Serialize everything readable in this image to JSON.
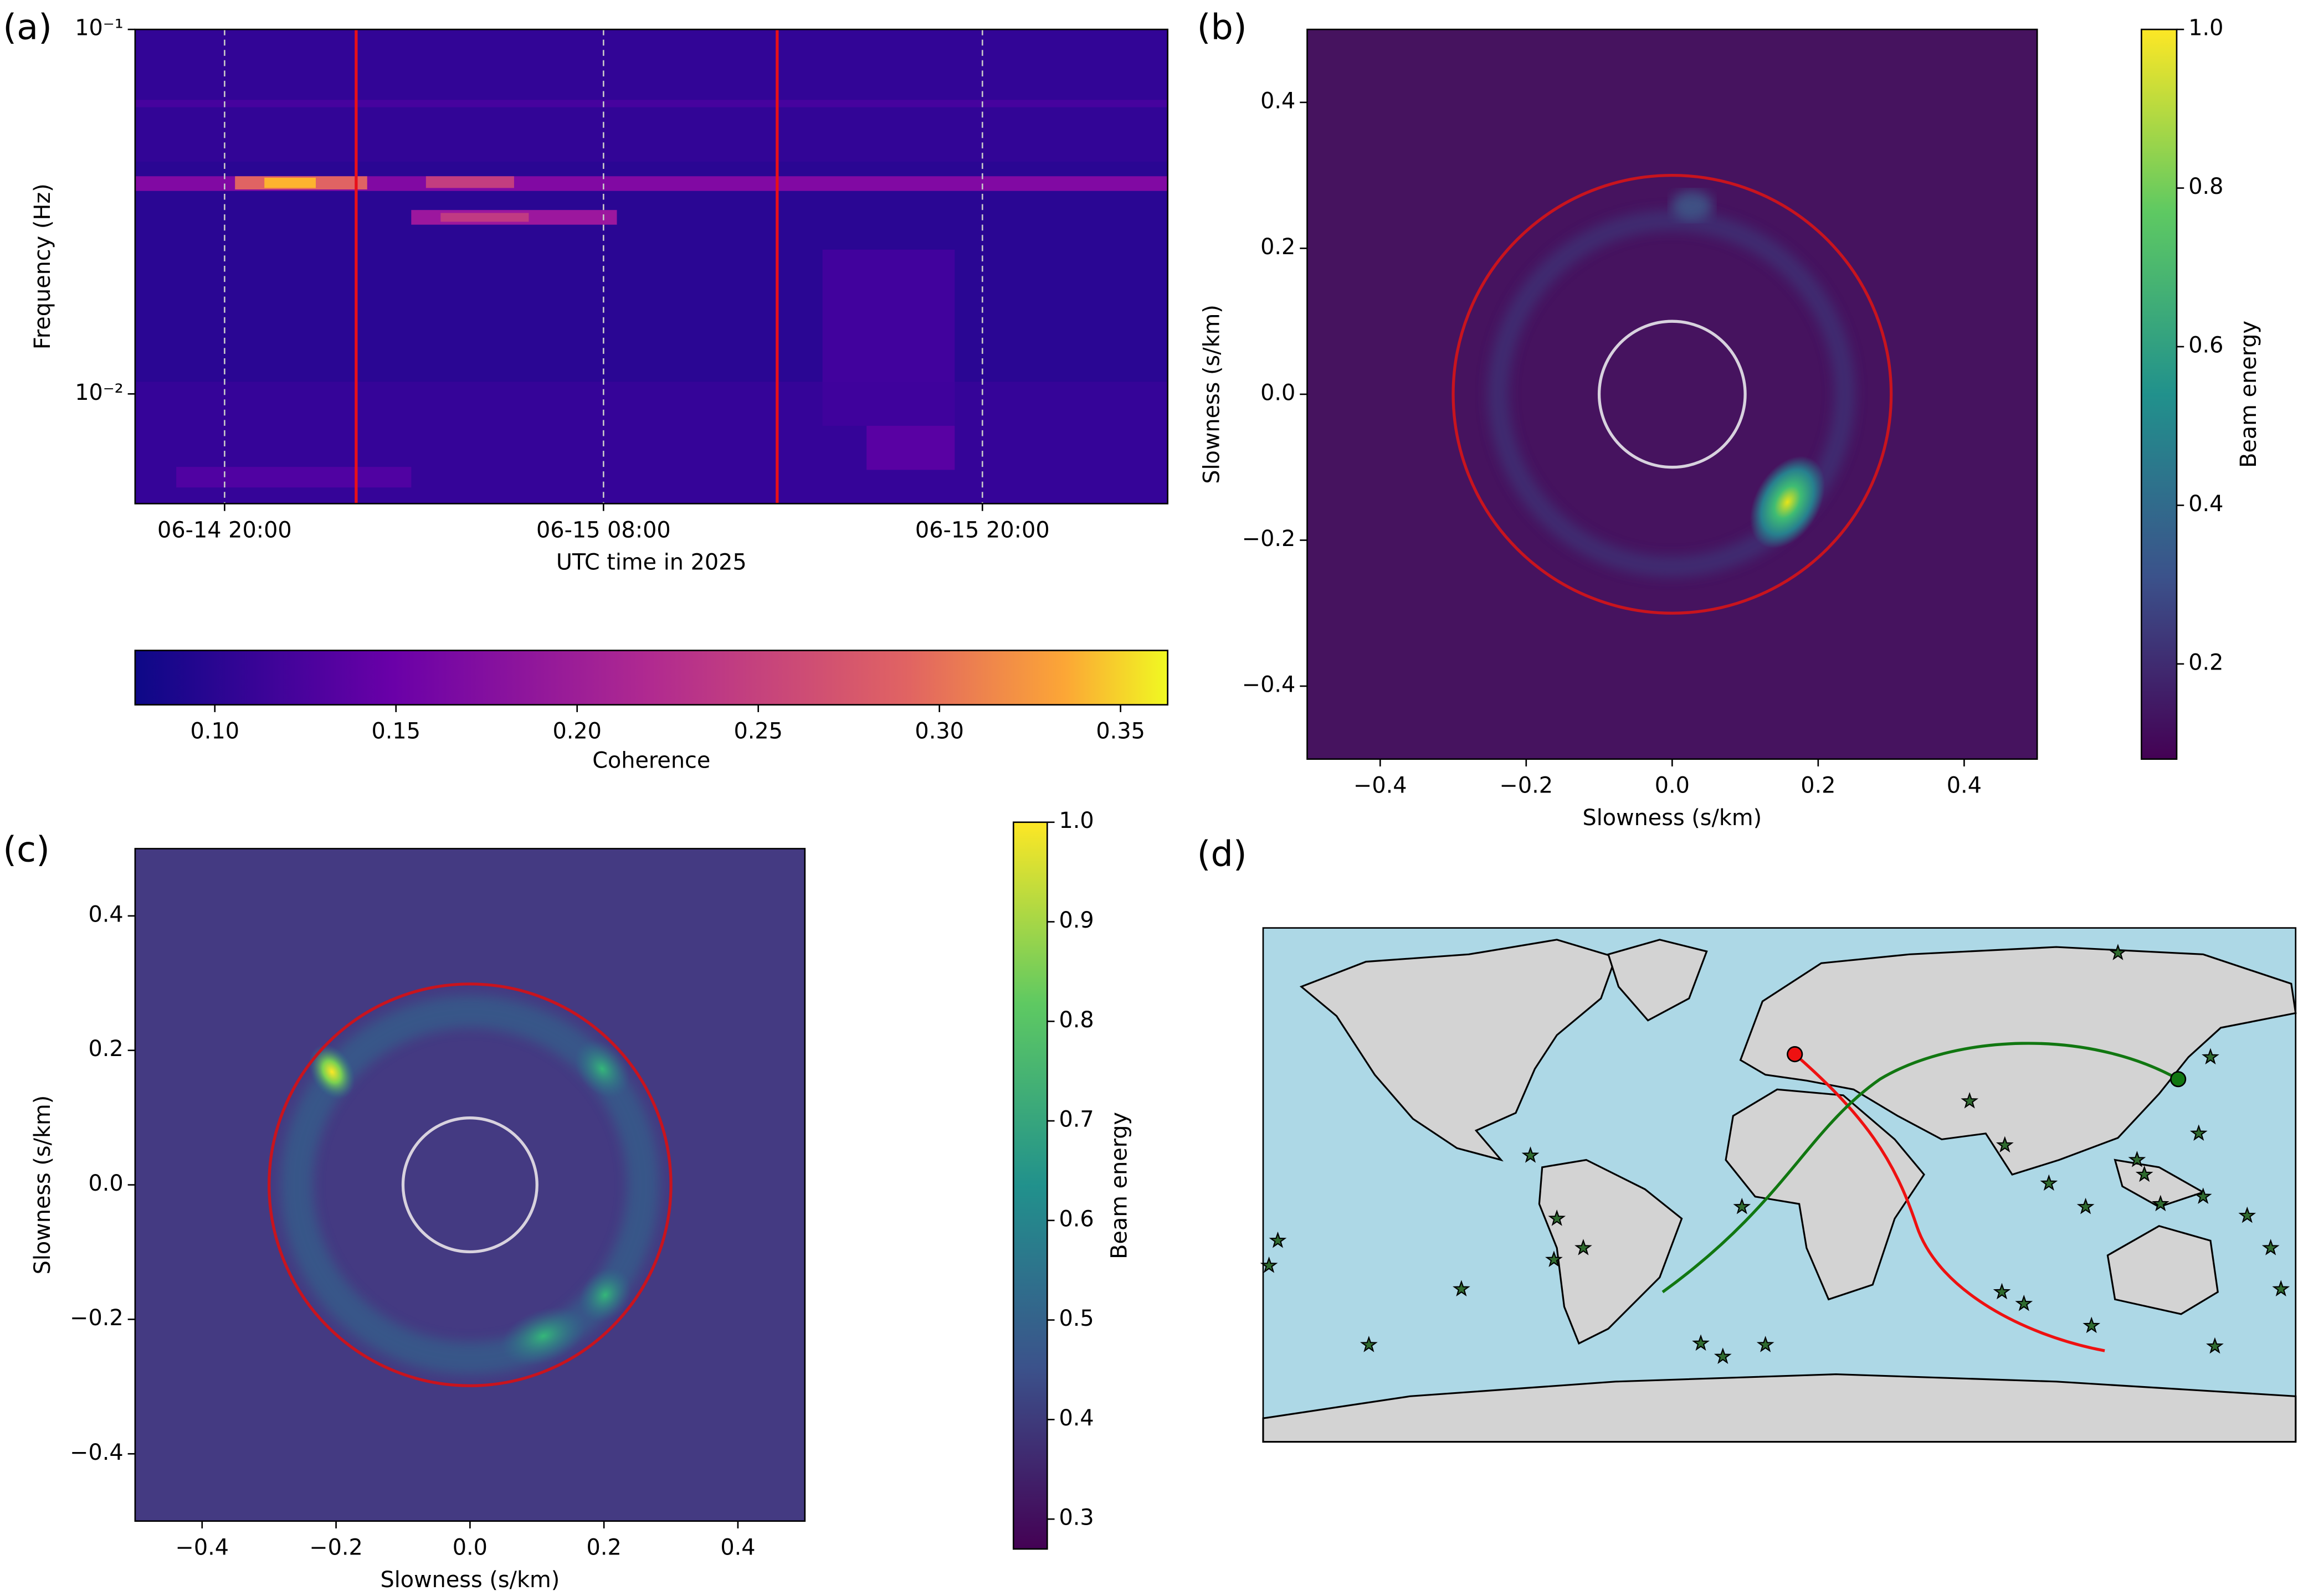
{
  "chart_data": [
    {
      "type": "heatmap",
      "label": "(a)",
      "xlabel": "UTC time in 2025",
      "ylabel": "Frequency (Hz)",
      "xlim": [
        "2025-06-14T17:10",
        "2025-06-16T01:52"
      ],
      "xticks": [
        {
          "value": "2025-06-14T20:00",
          "label": "06-14 20:00"
        },
        {
          "value": "2025-06-15T08:00",
          "label": "06-15 08:00"
        },
        {
          "value": "2025-06-15T20:00",
          "label": "06-15 20:00"
        }
      ],
      "xgrid": true,
      "yscale": "log",
      "ylim": [
        0.005,
        0.1
      ],
      "yticks": [
        {
          "value": 0.01,
          "label": "10⁻²"
        },
        {
          "value": 0.1,
          "label": "10⁻¹"
        }
      ],
      "vlines": [
        {
          "x": "2025-06-15T00:10",
          "color": "#e8101a"
        },
        {
          "x": "2025-06-15T13:30",
          "color": "#e8101a"
        }
      ],
      "colorbar": {
        "label": "Coherence",
        "colormap": "plasma",
        "orientation": "horizontal",
        "lim": [
          0.078,
          0.363
        ],
        "ticks": [
          {
            "value": 0.1,
            "label": "0.10"
          },
          0.15,
          {
            "value": 0.2,
            "label": "0.20"
          },
          0.25,
          {
            "value": 0.3,
            "label": "0.30"
          },
          0.35
        ]
      }
    },
    {
      "type": "heatmap",
      "label": "(b)",
      "xlabel": "Slowness (s/km)",
      "ylabel": "Slowness (s/km)",
      "xlim": [
        -0.5,
        0.5
      ],
      "ylim": [
        -0.5,
        0.5
      ],
      "xticks": [
        {
          "value": -0.4,
          "label": "−0.4"
        },
        {
          "value": -0.2,
          "label": "−0.2"
        },
        {
          "value": 0,
          "label": "0.0"
        },
        0.2,
        0.4
      ],
      "yticks": [
        {
          "value": -0.4,
          "label": "−0.4"
        },
        {
          "value": -0.2,
          "label": "−0.2"
        },
        {
          "value": 0,
          "label": "0.0"
        },
        0.2,
        0.4
      ],
      "circles": [
        {
          "r": 0.3,
          "color": "#c8141e"
        },
        {
          "r": 0.1,
          "color": "#d8d2de"
        }
      ],
      "colorbar": {
        "label": "Beam energy",
        "colormap": "viridis",
        "orientation": "vertical",
        "lim": [
          0.08,
          1.0
        ],
        "ticks": [
          0.2,
          0.4,
          0.6,
          0.8,
          {
            "value": 1,
            "label": "1.0"
          }
        ]
      }
    },
    {
      "type": "heatmap",
      "label": "(c)",
      "xlabel": "Slowness (s/km)",
      "ylabel": "Slowness (s/km)",
      "xlim": [
        -0.5,
        0.5
      ],
      "ylim": [
        -0.5,
        0.5
      ],
      "xticks": [
        {
          "value": -0.4,
          "label": "−0.4"
        },
        {
          "value": -0.2,
          "label": "−0.2"
        },
        {
          "value": 0,
          "label": "0.0"
        },
        0.2,
        0.4
      ],
      "yticks": [
        {
          "value": -0.4,
          "label": "−0.4"
        },
        {
          "value": -0.2,
          "label": "−0.2"
        },
        {
          "value": 0,
          "label": "0.0"
        },
        0.2,
        0.4
      ],
      "circles": [
        {
          "r": 0.3,
          "color": "#c8141e"
        },
        {
          "r": 0.1,
          "color": "#d8d2de"
        }
      ],
      "colorbar": {
        "label": "Beam energy",
        "colormap": "viridis",
        "orientation": "vertical",
        "lim": [
          0.27,
          1.0
        ],
        "ticks": [
          0.3,
          0.4,
          0.5,
          0.6,
          0.7,
          0.8,
          0.9,
          {
            "value": 1,
            "label": "1.0"
          }
        ]
      }
    },
    {
      "type": "map",
      "label": "(d)"
    }
  ]
}
